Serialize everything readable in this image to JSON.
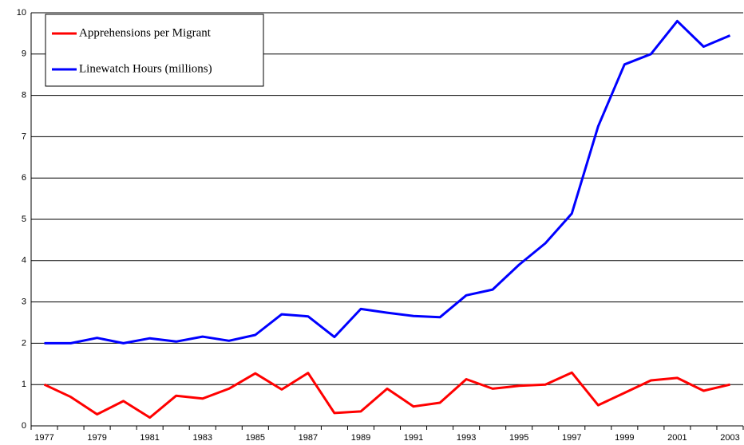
{
  "chart_data": {
    "type": "line",
    "categories": [
      "1977",
      null,
      "1979",
      null,
      "1981",
      null,
      "1983",
      null,
      "1985",
      null,
      "1987",
      null,
      "1989",
      null,
      "1991",
      null,
      "1993",
      null,
      "1995",
      null,
      "1997",
      null,
      "1999",
      null,
      "2001",
      null,
      "2003"
    ],
    "series": [
      {
        "name": "Apprehensions per Migrant",
        "color": "#ff0000",
        "values": [
          1.0,
          0.7,
          0.28,
          0.6,
          0.2,
          0.73,
          0.66,
          0.9,
          1.27,
          0.88,
          1.28,
          0.31,
          0.35,
          0.9,
          0.47,
          0.56,
          1.13,
          0.9,
          0.97,
          1.0,
          1.29,
          0.5,
          0.8,
          1.1,
          1.16,
          0.85,
          1.0
        ]
      },
      {
        "name": "Linewatch Hours (millions)",
        "color": "#0000ff",
        "values": [
          2.0,
          2.0,
          2.13,
          2.0,
          2.12,
          2.04,
          2.16,
          2.06,
          2.2,
          2.7,
          2.65,
          2.15,
          2.83,
          2.74,
          2.66,
          2.63,
          3.16,
          3.3,
          3.9,
          4.42,
          5.14,
          7.25,
          8.75,
          9.0,
          9.8,
          9.18,
          9.45
        ]
      }
    ],
    "ylim": [
      0,
      10
    ],
    "yticks": [
      0,
      1,
      2,
      3,
      4,
      5,
      6,
      7,
      8,
      9,
      10
    ],
    "grid": true,
    "legend": "top-left"
  }
}
